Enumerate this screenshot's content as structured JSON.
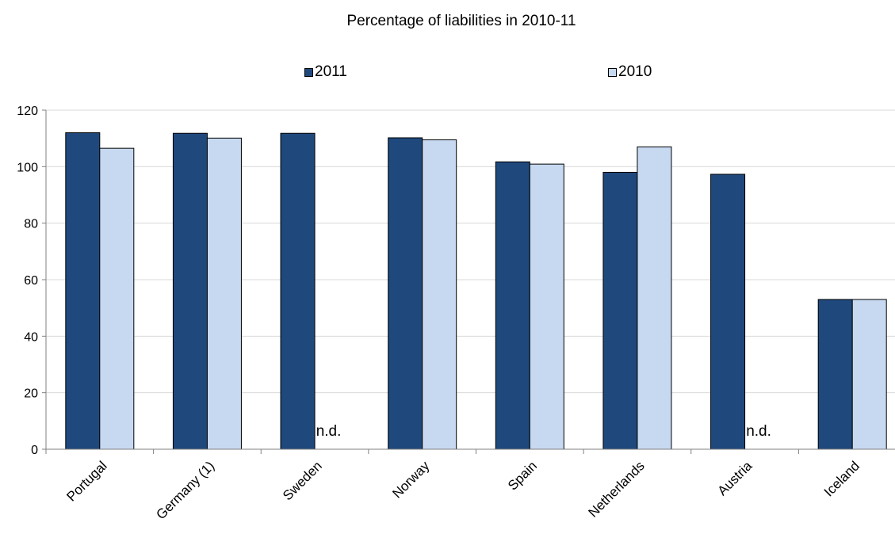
{
  "chart_data": {
    "type": "bar",
    "title": "Percentage of liabilities in 2010-11",
    "categories": [
      "Portugal",
      "Germany (1)",
      "Sweden",
      "Norway",
      "Spain",
      "Netherlands",
      "Austria",
      "Iceland"
    ],
    "series": [
      {
        "name": "2011",
        "color": "#1f497d",
        "values": [
          112,
          111.8,
          111.8,
          110.2,
          101.7,
          98,
          97.3,
          53
        ]
      },
      {
        "name": "2010",
        "color": "#c6d9f1",
        "values": [
          106.5,
          110.1,
          null,
          109.5,
          100.9,
          107,
          null,
          53
        ]
      }
    ],
    "missing_label": "n.d.",
    "yticks": [
      0,
      20,
      40,
      60,
      80,
      100,
      120
    ],
    "ylim": [
      0,
      120
    ],
    "legend_position": "top",
    "gridlines": true,
    "gridline_color": "#d9d9d9",
    "bar_stroke_color": "#000000"
  }
}
